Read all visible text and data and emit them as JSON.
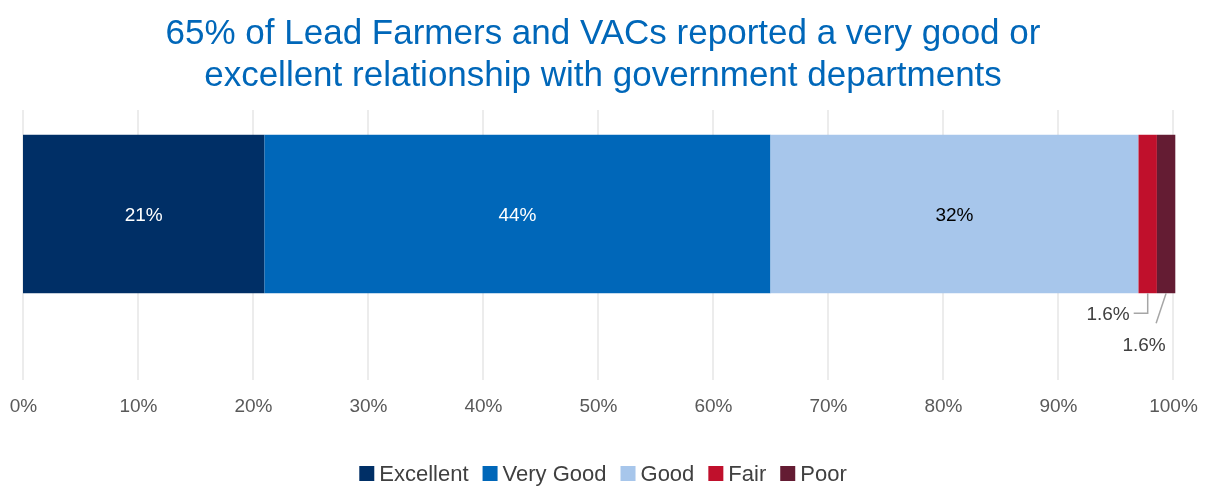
{
  "chart_data": {
    "type": "bar",
    "title": "65% of Lead Farmers and VACs reported a very good or excellent relationship with government departments",
    "orientation": "horizontal",
    "stacked": true,
    "categories": [
      null
    ],
    "series": [
      {
        "name": "Excellent",
        "color": "#002f66",
        "values": [
          21
        ],
        "value_labels": [
          "21%"
        ]
      },
      {
        "name": "Very Good",
        "color": "#0067b9",
        "values": [
          44
        ],
        "value_labels": [
          "44%"
        ]
      },
      {
        "name": "Good",
        "color": "#a7c6eb",
        "values": [
          32
        ],
        "value_labels": [
          "32%"
        ]
      },
      {
        "name": "Fair",
        "color": "#c0102c",
        "values": [
          1.6
        ],
        "value_labels": [
          "1.6%"
        ]
      },
      {
        "name": "Poor",
        "color": "#641c33",
        "values": [
          1.6
        ],
        "value_labels": [
          "1.6%"
        ]
      }
    ],
    "xlim": [
      0,
      100
    ],
    "xticks": [
      {
        "value": 0,
        "label": "0%"
      },
      {
        "value": 10,
        "label": "10%"
      },
      {
        "value": 20,
        "label": "20%"
      },
      {
        "value": 30,
        "label": "30%"
      },
      {
        "value": 40,
        "label": "40%"
      },
      {
        "value": 50,
        "label": "50%"
      },
      {
        "value": 60,
        "label": "60%"
      },
      {
        "value": 70,
        "label": "70%"
      },
      {
        "value": 80,
        "label": "80%"
      },
      {
        "value": 90,
        "label": "90%"
      },
      {
        "value": 100,
        "label": "100%"
      }
    ],
    "grid": "x",
    "legend": "bottom"
  }
}
